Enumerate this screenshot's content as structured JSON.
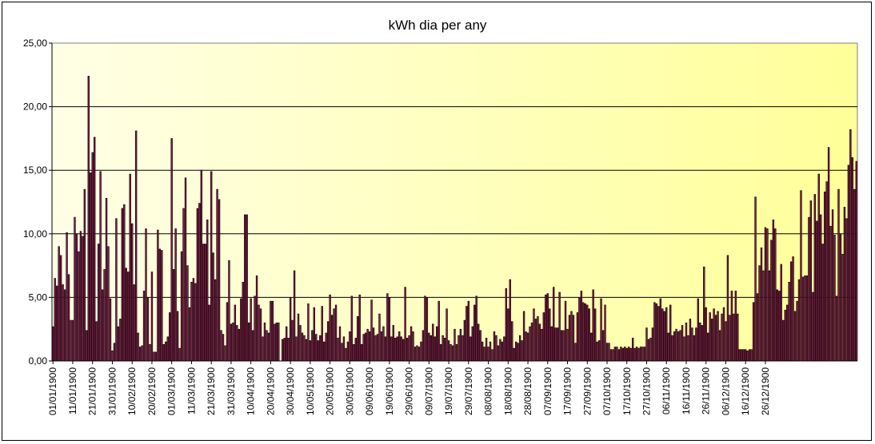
{
  "chart_data": {
    "type": "bar",
    "title": "kWh dia per any",
    "xlabel": "",
    "ylabel": "",
    "ylim": [
      0,
      25
    ],
    "y_ticks": [
      "0,00",
      "5,00",
      "10,00",
      "15,00",
      "20,00",
      "25,00"
    ],
    "x_tick_labels": [
      "01/01/1900",
      "11/01/1900",
      "21/01/1900",
      "31/01/1900",
      "10/02/1900",
      "20/02/1900",
      "01/03/1900",
      "11/03/1900",
      "21/03/1900",
      "31/03/1900",
      "10/04/1900",
      "20/04/1900",
      "30/04/1900",
      "10/05/1900",
      "20/05/1900",
      "30/05/1900",
      "09/06/1900",
      "19/06/1900",
      "29/06/1900",
      "09/07/1900",
      "19/07/1900",
      "29/07/1900",
      "08/08/1900",
      "18/08/1900",
      "28/08/1900",
      "07/09/1900",
      "17/09/1900",
      "27/09/1900",
      "07/10/1900",
      "17/10/1900",
      "27/10/1900",
      "06/11/1900",
      "16/11/1900",
      "26/11/1900",
      "06/12/1900",
      "16/12/1900",
      "26/12/1900"
    ],
    "grid": "horizontal",
    "legend": "none",
    "colors": {
      "bar_fill": "#8b1a4a",
      "bar_edge": "#000000",
      "plot_bg_left": "#ffffe6",
      "plot_bg_right": "#ffff99",
      "grid": "#000000"
    },
    "x_start": "01/01/1900",
    "values": [
      2.7,
      6.5,
      5.9,
      9.0,
      8.3,
      6.0,
      5.6,
      10.1,
      6.8,
      3.2,
      3.2,
      11.3,
      10.0,
      8.6,
      10.2,
      9.8,
      13.5,
      2.4,
      22.4,
      14.8,
      16.4,
      17.6,
      3.1,
      9.2,
      14.9,
      5.6,
      7.2,
      12.8,
      9.0,
      4.9,
      0.8,
      1.4,
      11.2,
      2.7,
      3.3,
      12.0,
      12.3,
      7.3,
      7.0,
      14.7,
      10.8,
      6.0,
      18.1,
      2.2,
      1.1,
      1.2,
      5.5,
      10.4,
      5.0,
      1.3,
      7.0,
      0.7,
      0.7,
      10.3,
      8.8,
      8.7,
      1.3,
      1.5,
      1.9,
      3.8,
      17.5,
      7.2,
      10.4,
      3.9,
      1.0,
      8.6,
      12.0,
      14.4,
      7.5,
      4.2,
      6.2,
      6.5,
      6.1,
      12.0,
      12.4,
      15.0,
      9.2,
      9.2,
      11.1,
      4.4,
      14.9,
      8.5,
      6.4,
      13.5,
      12.7,
      2.4,
      2.1,
      1.2,
      4.6,
      7.9,
      2.9,
      3.0,
      4.4,
      2.8,
      2.5,
      4.9,
      6.2,
      11.5,
      11.5,
      3.0,
      4.9,
      2.4,
      5.1,
      6.7,
      4.4,
      4.1,
      1.9,
      3.0,
      2.4,
      2.2,
      4.7,
      4.7,
      2.9,
      3.0,
      3.0,
      0.0,
      1.7,
      1.8,
      2.7,
      1.8,
      5.0,
      3.2,
      7.1,
      1.9,
      3.7,
      2.8,
      2.2,
      2.0,
      1.7,
      4.5,
      1.6,
      2.4,
      4.2,
      2.1,
      1.6,
      2.0,
      4.3,
      1.5,
      2.2,
      3.1,
      5.2,
      3.6,
      4.1,
      4.4,
      1.8,
      2.7,
      1.4,
      1.9,
      1.0,
      1.5,
      2.3,
      5.1,
      1.3,
      1.8,
      3.5,
      5.2,
      1.3,
      2.1,
      2.2,
      2.5,
      2.3,
      4.8,
      2.6,
      2.0,
      2.1,
      3.7,
      2.3,
      2.7,
      1.9,
      5.3,
      5.0,
      1.9,
      2.8,
      1.8,
      1.9,
      2.3,
      1.9,
      1.7,
      5.8,
      1.8,
      2.0,
      2.7,
      2.3,
      1.1,
      1.2,
      1.1,
      1.5,
      2.4,
      5.1,
      5.0,
      2.2,
      2.0,
      2.9,
      1.9,
      2.7,
      4.7,
      1.3,
      2.0,
      1.8,
      4.1,
      1.6,
      1.3,
      1.2,
      2.5,
      1.3,
      2.0,
      2.5,
      2.0,
      3.2,
      4.3,
      4.7,
      1.9,
      2.7,
      4.4,
      5.1,
      2.9,
      2.4,
      1.5,
      1.1,
      1.8,
      1.1,
      1.5,
      0.9,
      2.3,
      2.0,
      1.2,
      1.7,
      1.5,
      1.9,
      5.7,
      4.1,
      6.4,
      3.1,
      1.0,
      1.5,
      1.4,
      2.0,
      1.6,
      3.9,
      2.3,
      2.2,
      2.7,
      3.0,
      4.1,
      3.3,
      3.5,
      2.9,
      2.5,
      3.8,
      5.2,
      5.3,
      4.1,
      2.7,
      5.8,
      2.6,
      2.6,
      5.4,
      2.4,
      2.4,
      4.7,
      2.5,
      3.6,
      3.9,
      3.6,
      1.4,
      3.8,
      5.0,
      5.5,
      4.6,
      4.5,
      4.4,
      4.1,
      2.2,
      5.6,
      4.1,
      1.5,
      1.6,
      4.9,
      2.4,
      4.4,
      1.4,
      1.4,
      0.9,
      0.9,
      1.1,
      1.1,
      0.9,
      1.1,
      1.0,
      1.1,
      1.0,
      1.1,
      1.0,
      1.8,
      1.0,
      1.1,
      1.0,
      1.1,
      1.1,
      1.1,
      2.6,
      1.7,
      1.8,
      2.6,
      4.6,
      4.5,
      4.3,
      4.9,
      4.1,
      3.9,
      4.2,
      2.2,
      4.4,
      2.0,
      2.3,
      2.5,
      2.3,
      2.4,
      2.8,
      1.9,
      3.0,
      2.0,
      3.3,
      2.6,
      2.0,
      2.6,
      4.9,
      3.0,
      2.8,
      7.4,
      4.2,
      2.2,
      3.8,
      3.3,
      4.1,
      3.6,
      3.9,
      2.4,
      3.7,
      4.2,
      3.1,
      8.3,
      3.6,
      5.5,
      3.7,
      5.5,
      3.7,
      0.9,
      0.9,
      0.9,
      0.9,
      0.8,
      0.9,
      0.9,
      4.6,
      12.9,
      5.3,
      7.5,
      8.9,
      7.1,
      10.5,
      10.4,
      7.1,
      9.5,
      11.1,
      10.4,
      5.6,
      5.5,
      7.6,
      3.2,
      4.0,
      4.4,
      6.2,
      7.8,
      8.2,
      3.9,
      4.7,
      6.4,
      13.4,
      6.6,
      6.7,
      6.7,
      11.3,
      12.6,
      5.4,
      13.1,
      11.0,
      14.7,
      11.5,
      9.2,
      13.3,
      14.1,
      16.8,
      10.6,
      11.9,
      9.9,
      5.1,
      13.5,
      10.0,
      8.4,
      12.1,
      11.2,
      15.4,
      18.2,
      16.0,
      13.5,
      15.7
    ]
  }
}
